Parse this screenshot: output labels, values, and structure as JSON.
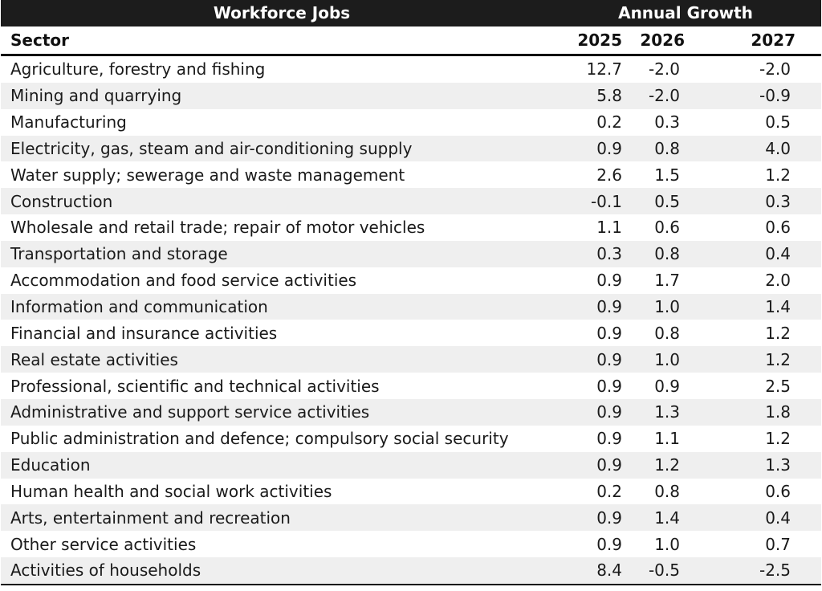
{
  "header": {
    "title": "Workforce Jobs",
    "group_label": "Annual Growth",
    "sector_label": "Sector",
    "years": [
      "2025",
      "2026",
      "2027"
    ]
  },
  "colors": {
    "header_band": "#1c1c1c",
    "stripe": "#efefef"
  },
  "chart_data": {
    "type": "table",
    "title": "Workforce Jobs",
    "column_group": "Annual Growth",
    "columns": [
      "Sector",
      "2025",
      "2026",
      "2027"
    ],
    "rows": [
      {
        "sector": "Agriculture, forestry and fishing",
        "v2025": "12.7",
        "v2026": "-2.0",
        "v2027": "-2.0"
      },
      {
        "sector": "Mining and quarrying",
        "v2025": "5.8",
        "v2026": "-2.0",
        "v2027": "-0.9"
      },
      {
        "sector": "Manufacturing",
        "v2025": "0.2",
        "v2026": "0.3",
        "v2027": "0.5"
      },
      {
        "sector": "Electricity, gas, steam and air-conditioning supply",
        "v2025": "0.9",
        "v2026": "0.8",
        "v2027": "4.0"
      },
      {
        "sector": "Water supply; sewerage and waste management",
        "v2025": "2.6",
        "v2026": "1.5",
        "v2027": "1.2"
      },
      {
        "sector": "Construction",
        "v2025": "-0.1",
        "v2026": "0.5",
        "v2027": "0.3"
      },
      {
        "sector": "Wholesale and retail trade; repair of motor vehicles",
        "v2025": "1.1",
        "v2026": "0.6",
        "v2027": "0.6"
      },
      {
        "sector": "Transportation and storage",
        "v2025": "0.3",
        "v2026": "0.8",
        "v2027": "0.4"
      },
      {
        "sector": "Accommodation and food service activities",
        "v2025": "0.9",
        "v2026": "1.7",
        "v2027": "2.0"
      },
      {
        "sector": "Information and communication",
        "v2025": "0.9",
        "v2026": "1.0",
        "v2027": "1.4"
      },
      {
        "sector": "Financial and insurance activities",
        "v2025": "0.9",
        "v2026": "0.8",
        "v2027": "1.2"
      },
      {
        "sector": "Real estate activities",
        "v2025": "0.9",
        "v2026": "1.0",
        "v2027": "1.2"
      },
      {
        "sector": "Professional, scientific and technical activities",
        "v2025": "0.9",
        "v2026": "0.9",
        "v2027": "2.5"
      },
      {
        "sector": "Administrative and support service activities",
        "v2025": "0.9",
        "v2026": "1.3",
        "v2027": "1.8"
      },
      {
        "sector": "Public administration and defence; compulsory social security",
        "v2025": "0.9",
        "v2026": "1.1",
        "v2027": "1.2"
      },
      {
        "sector": "Education",
        "v2025": "0.9",
        "v2026": "1.2",
        "v2027": "1.3"
      },
      {
        "sector": "Human health and social work activities",
        "v2025": "0.2",
        "v2026": "0.8",
        "v2027": "0.6"
      },
      {
        "sector": "Arts, entertainment and recreation",
        "v2025": "0.9",
        "v2026": "1.4",
        "v2027": "0.4"
      },
      {
        "sector": "Other service activities",
        "v2025": "0.9",
        "v2026": "1.0",
        "v2027": "0.7"
      },
      {
        "sector": "Activities of households",
        "v2025": "8.4",
        "v2026": "-0.5",
        "v2027": "-2.5"
      }
    ]
  }
}
